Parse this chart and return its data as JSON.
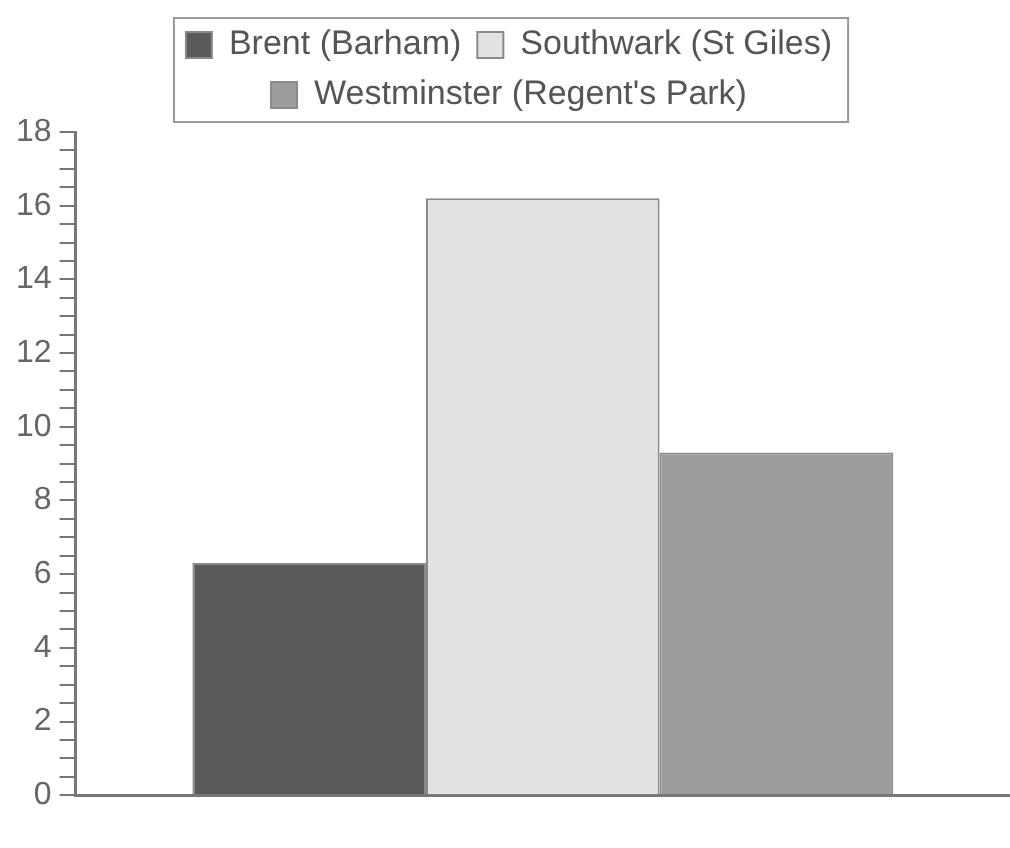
{
  "chart_data": {
    "type": "bar",
    "categories": [
      null
    ],
    "series": [
      {
        "name": "Brent (Barham)",
        "color": "#5a5a5a",
        "values": [
          6.3
        ]
      },
      {
        "name": "Southwark (St Giles)",
        "color": "#e2e2e2",
        "values": [
          16.2
        ]
      },
      {
        "name": "Westminster (Regent's Park)",
        "color": "#9c9c9c",
        "values": [
          9.3
        ]
      }
    ],
    "ylim": [
      0,
      18
    ],
    "yticks": [
      0,
      {
        "value": 0.5,
        "label": null
      },
      {
        "value": 1,
        "label": null
      },
      {
        "value": 1.5,
        "label": null
      },
      2,
      {
        "value": 2.5,
        "label": null
      },
      {
        "value": 3,
        "label": null
      },
      {
        "value": 3.5,
        "label": null
      },
      4,
      {
        "value": 4.5,
        "label": null
      },
      {
        "value": 5,
        "label": null
      },
      {
        "value": 5.5,
        "label": null
      },
      6,
      {
        "value": 6.5,
        "label": null
      },
      {
        "value": 7,
        "label": null
      },
      {
        "value": 7.5,
        "label": null
      },
      8,
      {
        "value": 8.5,
        "label": null
      },
      {
        "value": 9,
        "label": null
      },
      {
        "value": 9.5,
        "label": null
      },
      10,
      {
        "value": 10.5,
        "label": null
      },
      {
        "value": 11,
        "label": null
      },
      {
        "value": 11.5,
        "label": null
      },
      12,
      {
        "value": 12.5,
        "label": null
      },
      {
        "value": 13,
        "label": null
      },
      {
        "value": 13.5,
        "label": null
      },
      14,
      {
        "value": 14.5,
        "label": null
      },
      {
        "value": 15,
        "label": null
      },
      {
        "value": 15.5,
        "label": null
      },
      16,
      {
        "value": 16.5,
        "label": null
      },
      {
        "value": 17,
        "label": null
      },
      {
        "value": 17.5,
        "label": null
      },
      18
    ],
    "legend": "top",
    "grid": false
  }
}
